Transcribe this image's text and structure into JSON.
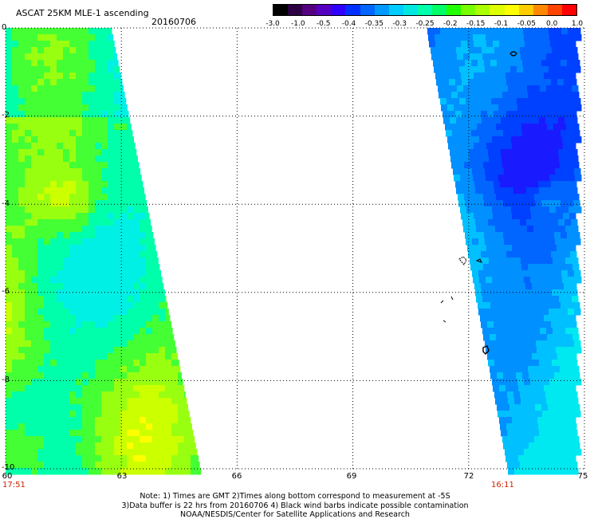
{
  "header": {
    "title": "ASCAT 25KM MLE-1 ascending",
    "date": "20160706"
  },
  "colorbar": {
    "labels": [
      "-3.0",
      "-1.0",
      "-0.5",
      "-0.4",
      "-0.35",
      "-0.3",
      "-0.25",
      "-0.2",
      "-0.15",
      "-0.1",
      "-0.05",
      "0.0",
      "1.0"
    ],
    "colors": [
      "#000000",
      "#2a0040",
      "#550080",
      "#5500c0",
      "#3000ff",
      "#0030ff",
      "#0066ff",
      "#0099ff",
      "#00ccff",
      "#00e8e0",
      "#00ffaa",
      "#00ff66",
      "#22ff00",
      "#77ff00",
      "#aaff00",
      "#ddff00",
      "#ffff00",
      "#ffcc00",
      "#ff8800",
      "#ff4400",
      "#ff0000"
    ]
  },
  "map": {
    "lon_range": [
      60,
      75
    ],
    "lat_range": [
      -10,
      0
    ],
    "lat_labels": [
      "0",
      "-2",
      "-4",
      "-6",
      "-8",
      "-10"
    ],
    "lon_labels": [
      "60",
      "63",
      "66",
      "69",
      "72",
      "75"
    ],
    "left_pass_time": "17:51",
    "right_pass_time": "16:11"
  },
  "notes": {
    "line1": "Note: 1) Times are GMT 2)Times along bottom correspond to measurement at -5S",
    "line2": "3)Data buffer is 22 hrs from 20160706 4) Black wind barbs indicate possible contamination",
    "line3": "NOAA/NESDIS/Center for Satellite Applications and Research"
  }
}
